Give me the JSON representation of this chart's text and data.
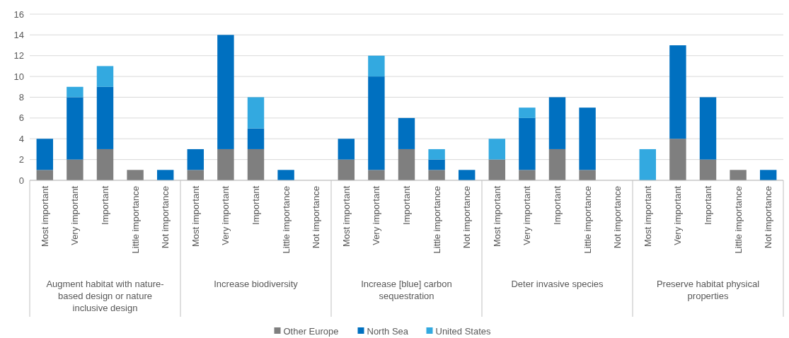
{
  "chart_data": {
    "type": "bar",
    "stacked": true,
    "grid": "y",
    "legend": "bottom",
    "categories": [
      "Most important",
      "Very important",
      "Important",
      "Little importance",
      "Not importance",
      "Most important",
      "Very important",
      "Important",
      "Little importance",
      "Not importance",
      "Most important",
      "Very important",
      "Important",
      "Little importance",
      "Not importance",
      "Most important",
      "Very important",
      "Important",
      "Little importance",
      "Not importance",
      "Most important",
      "Very important",
      "Important",
      "Little importance",
      "Not importance"
    ],
    "annotations": [
      "Augment habitat with nature-based design or nature inclusive design",
      "Increase biodiversity",
      "Increase [blue] carbon sequestration",
      "Deter invasive species",
      "Preserve habitat physical properties"
    ],
    "ylim": [
      0,
      16
    ],
    "yticks": [
      0,
      2,
      4,
      6,
      8,
      10,
      12,
      14,
      16
    ],
    "series": [
      {
        "name": "Other Europe",
        "color": "#7f7f7f",
        "values": [
          1,
          2,
          3,
          1,
          0,
          1,
          3,
          3,
          0,
          0,
          2,
          1,
          3,
          1,
          0,
          2,
          1,
          3,
          1,
          0,
          0,
          4,
          2,
          1,
          0
        ]
      },
      {
        "name": "North Sea",
        "color": "#0070c0",
        "values": [
          3,
          6,
          6,
          0,
          1,
          2,
          11,
          2,
          1,
          0,
          2,
          9,
          3,
          1,
          1,
          0,
          5,
          5,
          6,
          0,
          0,
          9,
          6,
          0,
          1
        ]
      },
      {
        "name": "United States",
        "color": "#33a9e0",
        "values": [
          0,
          1,
          2,
          0,
          0,
          0,
          0,
          3,
          0,
          0,
          0,
          2,
          0,
          1,
          0,
          2,
          1,
          0,
          0,
          0,
          3,
          0,
          0,
          0,
          0
        ]
      }
    ]
  }
}
